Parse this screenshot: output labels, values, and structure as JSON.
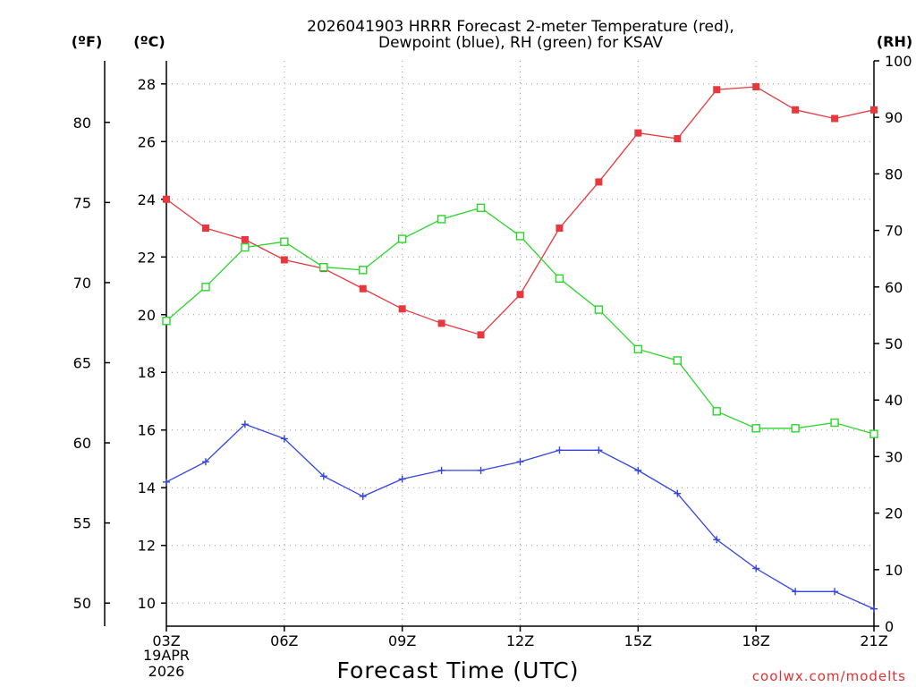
{
  "chart_data": {
    "type": "line",
    "title_line1": "2026041903 HRRR Forecast 2-meter Temperature (red),",
    "title_line2": "Dewpoint (blue), RH (green) for KSAV",
    "xlabel": "Forecast Time (UTC)",
    "x_ticks": [
      "03Z",
      "06Z",
      "09Z",
      "12Z",
      "15Z",
      "18Z",
      "21Z"
    ],
    "x_date_line1": "19APR",
    "x_date_line2": "2026",
    "hours": [
      3,
      4,
      5,
      6,
      7,
      8,
      9,
      10,
      11,
      12,
      13,
      14,
      15,
      16,
      17,
      18,
      19,
      20,
      21
    ],
    "xlim": [
      3,
      21
    ],
    "unit_f": "(ºF)",
    "unit_c": "(ºC)",
    "unit_rh": "(RH)",
    "ylim_c": [
      9.2,
      28.8
    ],
    "ylim_rh": [
      0,
      100
    ],
    "c_ticks": [
      "10",
      "12",
      "14",
      "16",
      "18",
      "20",
      "22",
      "24",
      "26",
      "28"
    ],
    "f_ticks": [
      "50",
      "55",
      "60",
      "65",
      "70",
      "75",
      "80"
    ],
    "rh_ticks": [
      "0",
      "10",
      "20",
      "30",
      "40",
      "50",
      "60",
      "70",
      "80",
      "90",
      "100"
    ],
    "series": [
      {
        "name": "Temperature",
        "color": "#e8373d",
        "marker": "filled-square",
        "axis": "celsius",
        "values": [
          24.0,
          23.0,
          22.6,
          21.9,
          21.6,
          20.9,
          20.2,
          19.7,
          19.3,
          20.7,
          23.0,
          24.6,
          26.3,
          26.1,
          27.8,
          27.9,
          27.1,
          26.8,
          27.1
        ]
      },
      {
        "name": "Dewpoint",
        "color": "#3344e0",
        "marker": "plus",
        "axis": "celsius",
        "values": [
          14.2,
          14.9,
          16.2,
          15.7,
          14.4,
          13.7,
          14.3,
          14.6,
          14.6,
          14.9,
          15.3,
          15.3,
          14.6,
          13.8,
          12.2,
          11.2,
          10.4,
          10.4,
          9.8
        ]
      },
      {
        "name": "Relative Humidity",
        "color": "#2bd52b",
        "marker": "open-square",
        "axis": "rh",
        "values": [
          54,
          60,
          67,
          68,
          63.5,
          63,
          68.5,
          72,
          74,
          69,
          61.5,
          56,
          49,
          47,
          38,
          35,
          35,
          36,
          34
        ]
      }
    ],
    "credit": "coolwx.com/modelts"
  }
}
